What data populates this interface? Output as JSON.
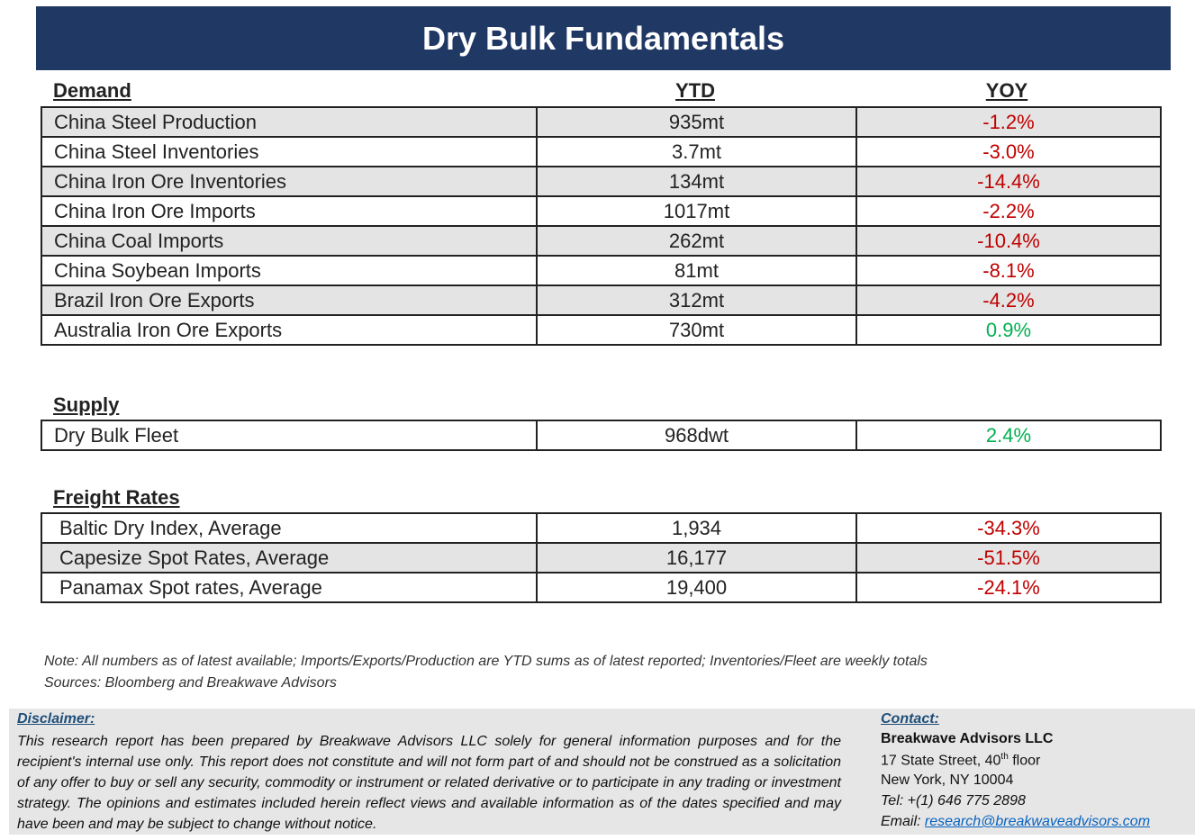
{
  "title": "Dry Bulk Fundamentals",
  "columns": {
    "ytd": "YTD",
    "yoy": "YOY"
  },
  "demand": {
    "heading": "Demand",
    "rows": [
      {
        "label": "China Steel Production",
        "ytd": "935mt",
        "yoy": "-1.2%"
      },
      {
        "label": "China Steel Inventories",
        "ytd": "3.7mt",
        "yoy": "-3.0%"
      },
      {
        "label": "China Iron Ore Inventories",
        "ytd": "134mt",
        "yoy": "-14.4%"
      },
      {
        "label": "China Iron Ore Imports",
        "ytd": "1017mt",
        "yoy": "-2.2%"
      },
      {
        "label": "China Coal Imports",
        "ytd": "262mt",
        "yoy": "-10.4%"
      },
      {
        "label": "China Soybean Imports",
        "ytd": "81mt",
        "yoy": "-8.1%"
      },
      {
        "label": "Brazil Iron Ore Exports",
        "ytd": "312mt",
        "yoy": "-4.2%"
      },
      {
        "label": "Australia Iron Ore Exports",
        "ytd": "730mt",
        "yoy": "0.9%"
      }
    ]
  },
  "supply": {
    "heading": "Supply",
    "rows": [
      {
        "label": "Dry Bulk Fleet",
        "ytd": "968dwt",
        "yoy": "2.4%"
      }
    ]
  },
  "freight": {
    "heading": "Freight Rates",
    "rows": [
      {
        "label": "Baltic Dry Index, Average",
        "ytd": "1,934",
        "yoy": "-34.3%"
      },
      {
        "label": "Capesize Spot Rates, Average",
        "ytd": "16,177",
        "yoy": "-51.5%"
      },
      {
        "label": "Panamax Spot rates, Average",
        "ytd": "19,400",
        "yoy": "-24.1%"
      }
    ]
  },
  "note": "Note:  All numbers as of latest available; Imports/Exports/Production are YTD sums as of latest reported; Inventories/Fleet are weekly totals",
  "sources": "Sources: Bloomberg and Breakwave Advisors",
  "disclaimer": {
    "heading": "Disclaimer:",
    "text": "This research report has been prepared by Breakwave Advisors LLC solely for general information purposes and for the recipient's internal use only. This report does not constitute and will not form part of and should not be construed as a solicitation of any offer to buy or sell any security, commodity or instrument or related derivative or to participate in any trading or investment strategy. The opinions and estimates included herein reflect views and available information as of the dates specified and may have been and may be subject to change without notice."
  },
  "contact": {
    "heading": "Contact:",
    "company": "Breakwave Advisors LLC",
    "street_prefix": "17 State Street, 40",
    "street_sup": "th",
    "street_suffix": " floor",
    "city": "New York, NY 10004",
    "tel": "Tel: +(1) 646 775 2898",
    "email_label": "Email: ",
    "email": "research@breakwaveadvisors.com"
  },
  "colors": {
    "title_bg": "#203864",
    "negative": "#c00000",
    "positive": "#00b050",
    "shade": "#e4e4e4"
  }
}
